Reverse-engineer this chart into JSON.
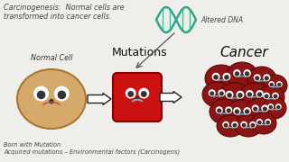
{
  "bg_color": "#f0eeea",
  "title_text": "Carcinogenesis:  Normal cells are\ntransformed into cancer cells.",
  "title_fontsize": 5.8,
  "title_color": "#444444",
  "dna_color": "#2aaa88",
  "dna_label": "Altered DNA",
  "dna_label_color": "#444444",
  "mutations_label": "Mutations",
  "cancer_label": "Cancer",
  "normal_cell_label": "Normal Cell",
  "cell_text": "Cell",
  "bottom_text": "Born with Mutation\nAcquired mutations – Environmental factors (Carcinogens)",
  "cell_body_color": "#d4a96a",
  "cell_outline_color": "#aa7733",
  "mutated_cell_color": "#cc1111",
  "mutated_cell_outline": "#880000",
  "cancer_cell_color": "#8b1515",
  "cancer_cell_outline": "#5a0000",
  "face_blue": "#7ab0cc",
  "arrow_fill": "#ffffff",
  "arrow_edge": "#222222",
  "eye_white": "#ffffff",
  "eye_dark": "#333333",
  "nose_color": "#333333"
}
